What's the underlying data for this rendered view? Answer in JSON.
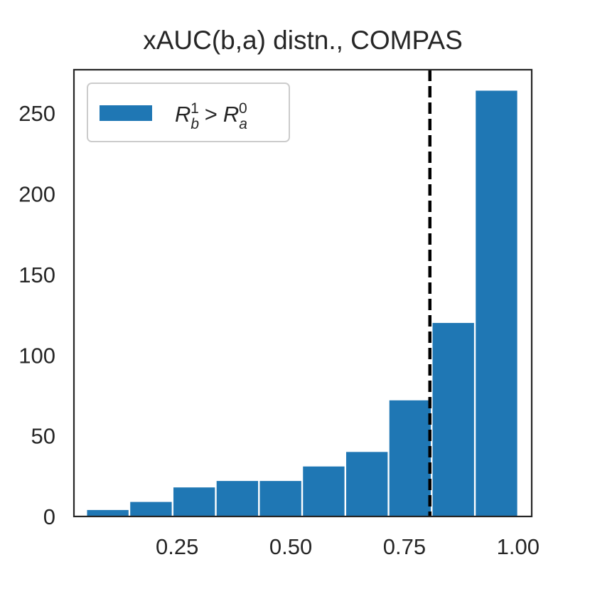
{
  "chart_data": {
    "type": "bar",
    "title": "xAUC(b,a) distn., COMPAS",
    "xlabel": "",
    "ylabel": "",
    "xlim": [
      0.023,
      1.03
    ],
    "ylim": [
      0,
      277
    ],
    "x_ticks": [
      "0.25",
      "0.50",
      "0.75",
      "1.00"
    ],
    "x_tick_values": [
      0.25,
      0.5,
      0.75,
      1.0
    ],
    "y_ticks": [
      "0",
      "50",
      "100",
      "150",
      "200",
      "250"
    ],
    "y_tick_values": [
      0,
      50,
      100,
      150,
      200,
      250
    ],
    "bins": [
      {
        "x0": 0.05,
        "x1": 0.145,
        "value": 4
      },
      {
        "x0": 0.145,
        "x1": 0.24,
        "value": 9
      },
      {
        "x0": 0.24,
        "x1": 0.335,
        "value": 18
      },
      {
        "x0": 0.335,
        "x1": 0.43,
        "value": 22
      },
      {
        "x0": 0.43,
        "x1": 0.525,
        "value": 22
      },
      {
        "x0": 0.525,
        "x1": 0.62,
        "value": 31
      },
      {
        "x0": 0.62,
        "x1": 0.715,
        "value": 40
      },
      {
        "x0": 0.715,
        "x1": 0.81,
        "value": 72
      },
      {
        "x0": 0.81,
        "x1": 0.905,
        "value": 120
      },
      {
        "x0": 0.905,
        "x1": 1.0,
        "value": 264
      }
    ],
    "vline": {
      "x": 0.806,
      "style": "dashed",
      "color": "#000000"
    },
    "series": [
      {
        "name": "R_b^1 > R_a^0",
        "color": "#1f77b4"
      }
    ],
    "legend": {
      "placement": "top-left",
      "label_main1": "R",
      "label_sub1": "b",
      "label_sup1": "1",
      "label_op": ">",
      "label_main2": "R",
      "label_sub2": "a",
      "label_sup2": "0"
    },
    "grid": false
  }
}
